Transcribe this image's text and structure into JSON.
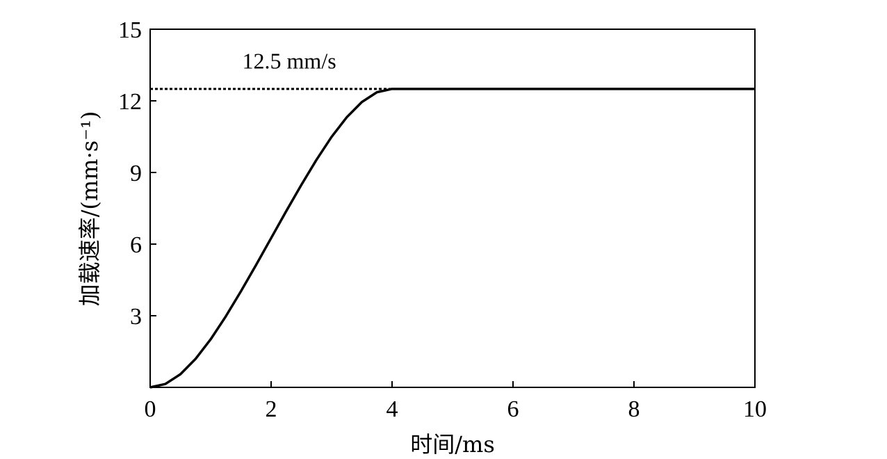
{
  "chart_data": {
    "type": "line",
    "xlabel": "时间/ms",
    "ylabel": "加载速率/(mm·s⁻¹)",
    "xlim": [
      0,
      10
    ],
    "ylim": [
      0,
      15
    ],
    "x_ticks": [
      "0",
      "2",
      "4",
      "6",
      "8",
      "10"
    ],
    "y_ticks": [
      "3",
      "6",
      "9",
      "12",
      "15"
    ],
    "grid": false,
    "legend": "none",
    "series": [
      {
        "style": "solid",
        "color": "#000000",
        "x": [
          0,
          0.25,
          0.5,
          0.75,
          1.0,
          1.25,
          1.5,
          1.75,
          2.0,
          2.25,
          2.5,
          2.75,
          3.0,
          3.25,
          3.5,
          3.75,
          4.0,
          5,
          6,
          7,
          8,
          9,
          10
        ],
        "y": [
          0,
          0.14,
          0.55,
          1.19,
          2.01,
          2.97,
          4.02,
          5.12,
          6.25,
          7.38,
          8.48,
          9.53,
          10.49,
          11.31,
          11.95,
          12.36,
          12.5,
          12.5,
          12.5,
          12.5,
          12.5,
          12.5,
          12.5
        ]
      },
      {
        "style": "dotted",
        "color": "#000000",
        "x": [
          0,
          4
        ],
        "y": [
          12.5,
          12.5
        ]
      }
    ],
    "annotations": [
      {
        "text": "12.5 mm/s",
        "x": 2.3,
        "y": 13.35
      }
    ]
  }
}
